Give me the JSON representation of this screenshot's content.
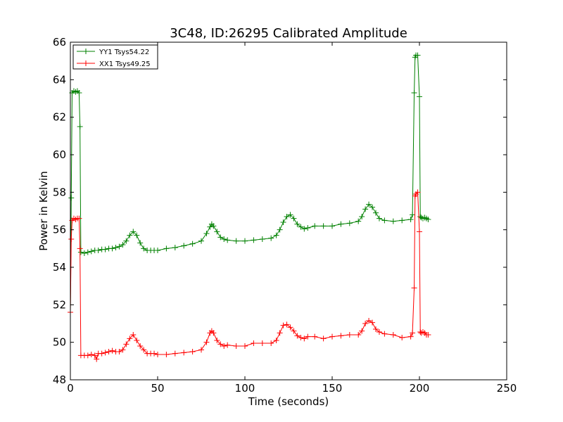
{
  "chart_data": {
    "type": "line",
    "title": "3C48, ID:26295 Calibrated Amplitude",
    "xlabel": "Time (seconds)",
    "ylabel": "Power in Kelvin",
    "xlim": [
      0,
      250
    ],
    "ylim": [
      48,
      66
    ],
    "xticks": [
      0,
      50,
      100,
      150,
      200,
      250
    ],
    "yticks": [
      48,
      50,
      52,
      54,
      56,
      58,
      60,
      62,
      64,
      66
    ],
    "grid": false,
    "legend_position": "top-left",
    "marker": "plus",
    "series": [
      {
        "name": "YY1 Tsys54.22",
        "color": "#008000",
        "x": [
          0,
          0.5,
          1,
          2,
          3,
          4,
          5,
          5.5,
          6,
          8,
          10,
          12,
          14,
          16,
          18,
          20,
          22,
          24,
          26,
          28,
          30,
          32,
          34,
          36,
          38,
          40,
          42,
          44,
          46,
          48,
          50,
          55,
          60,
          65,
          70,
          75,
          78,
          80,
          81,
          82,
          84,
          86,
          88,
          90,
          95,
          100,
          105,
          110,
          115,
          118,
          120,
          122,
          124,
          126,
          128,
          130,
          132,
          134,
          136,
          140,
          145,
          150,
          155,
          160,
          165,
          167,
          169,
          171,
          173,
          175,
          177,
          180,
          185,
          190,
          195,
          196,
          197,
          197.5,
          198,
          199,
          200,
          200.5,
          201,
          202,
          203,
          204,
          205
        ],
        "values": [
          51.6,
          57.7,
          63.3,
          63.4,
          63.35,
          63.4,
          63.3,
          61.5,
          54.8,
          54.75,
          54.8,
          54.85,
          54.9,
          54.9,
          54.95,
          54.95,
          55.0,
          55.0,
          55.05,
          55.1,
          55.2,
          55.4,
          55.7,
          55.9,
          55.7,
          55.3,
          55.0,
          54.9,
          54.9,
          54.9,
          54.9,
          55.0,
          55.05,
          55.15,
          55.25,
          55.4,
          55.8,
          56.15,
          56.3,
          56.2,
          55.9,
          55.6,
          55.5,
          55.45,
          55.4,
          55.4,
          55.45,
          55.5,
          55.55,
          55.7,
          56.0,
          56.4,
          56.7,
          56.8,
          56.6,
          56.3,
          56.15,
          56.05,
          56.1,
          56.2,
          56.2,
          56.2,
          56.3,
          56.35,
          56.45,
          56.7,
          57.1,
          57.35,
          57.2,
          56.9,
          56.6,
          56.5,
          56.45,
          56.5,
          56.55,
          56.8,
          63.3,
          65.2,
          65.3,
          65.3,
          63.1,
          56.7,
          56.65,
          56.6,
          56.65,
          56.6,
          56.55
        ]
      },
      {
        "name": "XX1 Tsys49.25",
        "color": "#ff0000",
        "x": [
          0,
          0.5,
          1,
          2,
          3,
          4,
          5,
          5.5,
          6,
          8,
          10,
          12,
          14,
          15,
          16,
          18,
          20,
          22,
          24,
          26,
          28,
          30,
          32,
          34,
          36,
          38,
          40,
          42,
          44,
          46,
          48,
          50,
          55,
          60,
          65,
          70,
          75,
          78,
          80,
          81,
          82,
          84,
          86,
          88,
          90,
          95,
          100,
          105,
          110,
          115,
          118,
          120,
          122,
          124,
          126,
          128,
          130,
          132,
          134,
          136,
          140,
          145,
          150,
          155,
          160,
          165,
          167,
          169,
          171,
          173,
          175,
          177,
          180,
          185,
          190,
          195,
          196,
          197,
          197.5,
          198,
          199,
          200,
          200.5,
          201,
          202,
          203,
          204,
          205
        ],
        "values": [
          51.6,
          55.5,
          56.5,
          56.6,
          56.55,
          56.6,
          56.6,
          55.0,
          49.3,
          49.3,
          49.3,
          49.35,
          49.3,
          49.1,
          49.4,
          49.4,
          49.45,
          49.5,
          49.55,
          49.5,
          49.5,
          49.6,
          49.9,
          50.2,
          50.4,
          50.1,
          49.8,
          49.6,
          49.4,
          49.4,
          49.4,
          49.35,
          49.35,
          49.4,
          49.45,
          49.5,
          49.6,
          50.0,
          50.5,
          50.6,
          50.5,
          50.1,
          49.9,
          49.8,
          49.85,
          49.8,
          49.8,
          49.95,
          49.95,
          49.95,
          50.1,
          50.5,
          50.9,
          50.95,
          50.8,
          50.6,
          50.35,
          50.25,
          50.2,
          50.3,
          50.3,
          50.2,
          50.3,
          50.35,
          50.4,
          50.4,
          50.6,
          51.0,
          51.15,
          51.05,
          50.7,
          50.55,
          50.45,
          50.4,
          50.25,
          50.3,
          50.5,
          52.9,
          57.8,
          57.9,
          58.0,
          55.9,
          50.55,
          50.5,
          50.55,
          50.5,
          50.4,
          50.4
        ]
      }
    ]
  }
}
